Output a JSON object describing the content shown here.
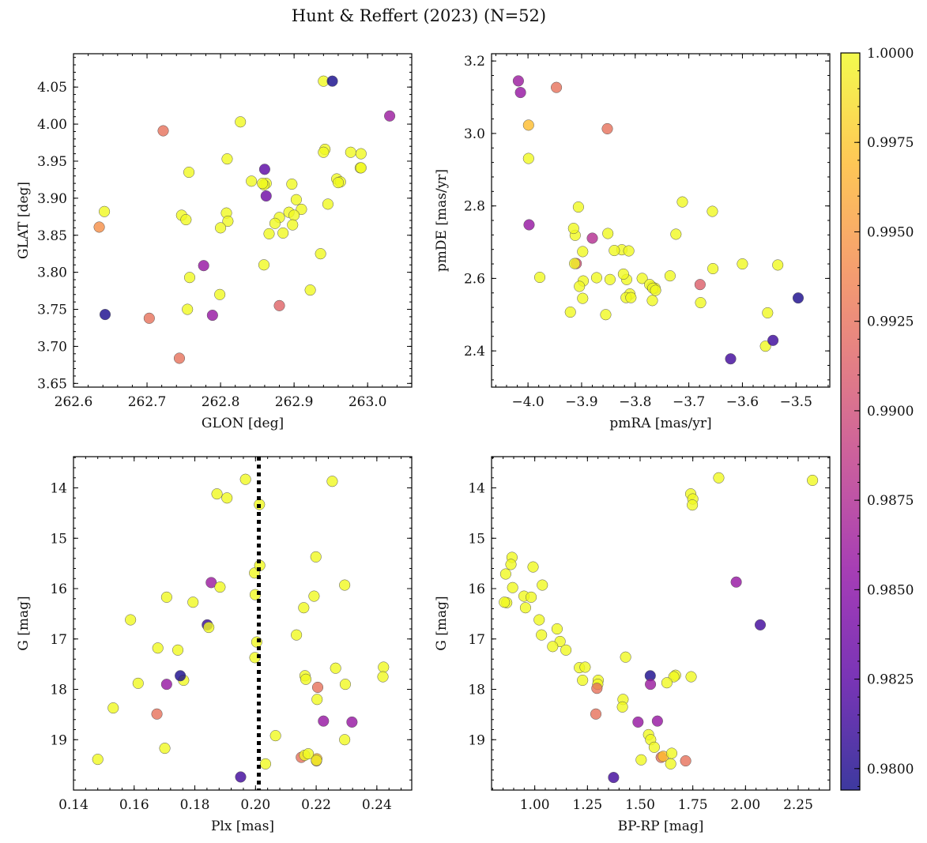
{
  "title": "Hunt & Reffert (2023) (N=52)",
  "colorbar": {
    "cmap": "plasma",
    "vmin": 0.9794,
    "vmax": 1.0,
    "ticks": [
      0.98,
      0.9825,
      0.985,
      0.9875,
      0.99,
      0.9925,
      0.995,
      0.9975,
      1.0
    ],
    "tick_labels": [
      "0.9800",
      "0.9825",
      "0.9850",
      "0.9875",
      "0.9900",
      "0.9925",
      "0.9950",
      "0.9975",
      "1.0000"
    ]
  },
  "chart_data": [
    {
      "type": "scatter",
      "id": "glon-glat",
      "title": "",
      "xlabel": "GLON [deg]",
      "ylabel": "GLAT [deg]",
      "xlim": [
        262.6,
        263.06
      ],
      "ylim": [
        3.645,
        4.095
      ],
      "invert_y": false,
      "xticks": [
        262.6,
        262.7,
        262.8,
        262.9,
        263.0
      ],
      "xtick_labels": [
        "262.6",
        "262.7",
        "262.8",
        "262.9",
        "263.0"
      ],
      "yticks": [
        3.65,
        3.7,
        3.75,
        3.8,
        3.85,
        3.9,
        3.95,
        4.0,
        4.05
      ],
      "ytick_labels": [
        "3.65",
        "3.70",
        "3.75",
        "3.80",
        "3.85",
        "3.90",
        "3.95",
        "4.00",
        "4.05"
      ],
      "x": [
        262.94,
        262.952,
        262.827,
        262.722,
        262.86,
        262.757,
        262.747,
        262.753,
        262.642,
        262.643,
        262.635,
        262.862,
        262.859,
        262.862,
        262.897,
        262.903,
        262.91,
        262.893,
        262.9,
        262.88,
        262.898,
        262.885,
        262.874,
        262.866,
        262.859,
        262.942,
        262.946,
        262.958,
        262.963,
        262.96,
        262.977,
        262.991,
        262.99,
        262.991,
        262.936,
        262.809,
        262.808,
        262.81,
        262.777,
        262.799,
        262.758,
        262.755,
        262.789,
        262.88,
        262.922,
        262.703,
        262.744,
        262.94,
        262.8,
        262.842,
        263.03,
        262.857
      ],
      "y": [
        4.058,
        4.058,
        4.003,
        3.991,
        3.939,
        3.935,
        3.877,
        3.871,
        3.882,
        3.743,
        3.861,
        3.92,
        3.918,
        3.903,
        3.919,
        3.898,
        3.885,
        3.881,
        3.877,
        3.874,
        3.864,
        3.853,
        3.866,
        3.852,
        3.81,
        3.966,
        3.892,
        3.926,
        3.922,
        3.921,
        3.962,
        3.96,
        3.941,
        3.941,
        3.825,
        3.953,
        3.88,
        3.869,
        3.809,
        3.77,
        3.793,
        3.75,
        3.742,
        3.755,
        3.776,
        3.738,
        3.684,
        3.962,
        3.86,
        3.923,
        4.011,
        3.92
      ],
      "c": [
        1.0,
        0.9796,
        1.0,
        0.9925,
        0.9825,
        1.0,
        1.0,
        1.0,
        1.0,
        0.9798,
        0.9944,
        1.0,
        1.0,
        0.9835,
        1.0,
        1.0,
        1.0,
        1.0,
        1.0,
        1.0,
        1.0,
        1.0,
        1.0,
        1.0,
        1.0,
        1.0,
        1.0,
        1.0,
        1.0,
        1.0,
        1.0,
        1.0,
        1.0,
        1.0,
        1.0,
        1.0,
        1.0,
        1.0,
        0.9858,
        1.0,
        1.0,
        1.0,
        0.9858,
        0.9915,
        1.0,
        0.9925,
        0.9925,
        1.0,
        1.0,
        1.0,
        0.9862,
        1.0
      ]
    },
    {
      "type": "scatter",
      "id": "pmra-pmde",
      "title": "",
      "xlabel": "pmRA [mas/yr]",
      "ylabel": "pmDE [mas/yr]",
      "xlim": [
        -4.068,
        -3.437
      ],
      "ylim": [
        2.3,
        3.22
      ],
      "invert_y": false,
      "xticks": [
        -4.0,
        -3.9,
        -3.8,
        -3.7,
        -3.6,
        -3.5
      ],
      "xtick_labels": [
        "−4.0",
        "−3.9",
        "−3.8",
        "−3.7",
        "−3.6",
        "−3.5"
      ],
      "yticks": [
        2.4,
        2.6,
        2.8,
        3.0,
        3.2
      ],
      "ytick_labels": [
        "2.4",
        "2.6",
        "2.8",
        "3.0",
        "3.2"
      ],
      "x": [
        -4.018,
        -4.014,
        -3.947,
        -3.999,
        -3.852,
        -3.999,
        -3.998,
        -3.712,
        -3.906,
        -3.656,
        -3.88,
        -3.912,
        -3.915,
        -3.851,
        -3.724,
        -3.978,
        -3.897,
        -3.91,
        -3.847,
        -3.825,
        -3.812,
        -3.872,
        -3.839,
        -3.904,
        -3.816,
        -3.787,
        -3.81,
        -3.817,
        -3.769,
        -3.773,
        -3.763,
        -3.735,
        -3.768,
        -3.679,
        -3.767,
        -3.762,
        -3.655,
        -3.6,
        -3.534,
        -3.553,
        -3.557,
        -3.543,
        -3.496,
        -3.622,
        -3.855,
        -3.921,
        -3.822,
        -3.898,
        -3.898,
        -3.913,
        -3.808,
        -3.678
      ],
      "y": [
        3.145,
        3.113,
        3.127,
        3.023,
        3.013,
        2.931,
        2.748,
        2.811,
        2.797,
        2.785,
        2.711,
        2.719,
        2.738,
        2.724,
        2.722,
        2.603,
        2.593,
        2.641,
        2.597,
        2.679,
        2.676,
        2.602,
        2.677,
        2.578,
        2.597,
        2.6,
        2.557,
        2.547,
        2.577,
        2.583,
        2.573,
        2.607,
        2.539,
        2.583,
        2.573,
        2.567,
        2.627,
        2.64,
        2.637,
        2.505,
        2.413,
        2.429,
        2.546,
        2.378,
        2.5,
        2.507,
        2.612,
        2.674,
        2.545,
        2.641,
        2.547,
        2.533
      ],
      "c": [
        0.9862,
        0.9858,
        0.9925,
        0.997,
        0.9925,
        1.0,
        0.9858,
        1.0,
        1.0,
        1.0,
        0.9877,
        1.0,
        1.0,
        1.0,
        1.0,
        1.0,
        1.0,
        0.9902,
        1.0,
        1.0,
        1.0,
        1.0,
        1.0,
        1.0,
        1.0,
        1.0,
        1.0,
        1.0,
        1.0,
        1.0,
        1.0,
        1.0,
        1.0,
        0.9912,
        1.0,
        1.0,
        1.0,
        1.0,
        1.0,
        1.0,
        1.0,
        0.9812,
        0.9798,
        0.9814,
        1.0,
        1.0,
        1.0,
        1.0,
        1.0,
        1.0,
        1.0,
        1.0
      ]
    },
    {
      "type": "scatter",
      "id": "plx-g",
      "title": "",
      "xlabel": "Plx [mas]",
      "ylabel": "G [mag]",
      "xlim": [
        0.14,
        0.2515
      ],
      "ylim": [
        13.38,
        20.0
      ],
      "invert_y": true,
      "vline": 0.2011,
      "xticks": [
        0.14,
        0.16,
        0.18,
        0.2,
        0.22,
        0.24
      ],
      "xtick_labels": [
        "0.14",
        "0.16",
        "0.18",
        "0.20",
        "0.22",
        "0.24"
      ],
      "yticks": [
        14,
        15,
        16,
        17,
        18,
        19
      ],
      "ytick_labels": [
        "14",
        "15",
        "16",
        "17",
        "18",
        "19"
      ],
      "x": [
        0.1967,
        0.2253,
        0.1873,
        0.1906,
        0.2013,
        0.2199,
        0.1997,
        0.2014,
        0.2294,
        0.1854,
        0.1883,
        0.1999,
        0.1707,
        0.2193,
        0.1794,
        0.2159,
        0.1588,
        0.1841,
        0.1846,
        0.2004,
        0.2135,
        0.1998,
        0.1678,
        0.1744,
        0.1763,
        0.1752,
        0.1707,
        0.1613,
        0.2163,
        0.2166,
        0.2264,
        0.2422,
        0.242,
        0.2296,
        0.2205,
        0.2203,
        0.1531,
        0.2224,
        0.2318,
        0.1675,
        0.2066,
        0.2294,
        0.1701,
        0.148,
        0.2151,
        0.2202,
        0.2201,
        0.2033,
        0.1951,
        0.2162,
        0.2174,
        0.2201
      ],
      "y": [
        13.83,
        13.87,
        14.12,
        14.2,
        14.33,
        15.37,
        15.69,
        15.54,
        15.93,
        15.88,
        15.97,
        16.12,
        16.17,
        16.15,
        16.27,
        16.38,
        16.62,
        16.72,
        16.77,
        17.06,
        16.92,
        17.37,
        17.18,
        17.22,
        17.82,
        17.73,
        17.9,
        17.88,
        17.73,
        17.8,
        17.58,
        17.56,
        17.75,
        17.9,
        17.96,
        18.2,
        18.37,
        18.63,
        18.65,
        18.49,
        18.92,
        19.0,
        19.17,
        19.39,
        19.35,
        19.38,
        19.42,
        19.48,
        19.74,
        19.31,
        19.28,
        19.41
      ],
      "c": [
        1.0,
        1.0,
        1.0,
        1.0,
        1.0,
        1.0,
        1.0,
        1.0,
        1.0,
        0.9862,
        1.0,
        1.0,
        1.0,
        1.0,
        1.0,
        1.0,
        1.0,
        0.981,
        1.0,
        1.0,
        1.0,
        1.0,
        1.0,
        1.0,
        1.0,
        0.9798,
        0.9858,
        1.0,
        1.0,
        1.0,
        1.0,
        1.0,
        1.0,
        1.0,
        0.9925,
        1.0,
        1.0,
        0.9858,
        0.9858,
        0.9925,
        1.0,
        1.0,
        1.0,
        1.0,
        0.9925,
        0.997,
        0.9925,
        1.0,
        0.9814,
        1.0,
        1.0,
        1.0
      ]
    },
    {
      "type": "scatter",
      "id": "bprp-g",
      "title": "",
      "xlabel": "BP-RP [mag]",
      "ylabel": "G [mag]",
      "xlim": [
        0.795,
        2.4
      ],
      "ylim": [
        13.38,
        20.0
      ],
      "invert_y": true,
      "xticks": [
        1.0,
        1.25,
        1.5,
        1.75,
        2.0,
        2.25
      ],
      "xtick_labels": [
        "1.00",
        "1.25",
        "1.50",
        "1.75",
        "2.00",
        "2.25"
      ],
      "yticks": [
        14,
        15,
        16,
        17,
        18,
        19
      ],
      "ytick_labels": [
        "14",
        "15",
        "16",
        "17",
        "18",
        "19"
      ],
      "x": [
        1.873,
        2.318,
        1.74,
        1.75,
        1.748,
        0.892,
        0.887,
        0.862,
        0.992,
        1.036,
        0.867,
        0.895,
        0.949,
        0.983,
        0.956,
        0.856,
        1.021,
        1.032,
        1.106,
        1.12,
        1.085,
        1.148,
        1.212,
        1.239,
        1.227,
        1.301,
        1.299,
        1.295,
        1.431,
        1.419,
        1.416,
        1.548,
        1.549,
        1.668,
        1.66,
        1.627,
        1.742,
        1.956,
        2.07,
        1.49,
        1.582,
        1.54,
        1.55,
        1.567,
        1.505,
        1.6,
        1.61,
        1.65,
        1.645,
        1.716,
        1.374,
        1.29
      ],
      "y": [
        13.8,
        13.85,
        14.12,
        14.22,
        14.34,
        15.38,
        15.52,
        15.71,
        15.57,
        15.93,
        16.28,
        15.98,
        16.15,
        16.17,
        16.38,
        16.27,
        16.62,
        16.92,
        16.8,
        17.05,
        17.15,
        17.22,
        17.57,
        17.56,
        17.82,
        17.82,
        17.9,
        17.98,
        17.36,
        18.2,
        18.35,
        17.73,
        17.9,
        17.72,
        17.75,
        17.87,
        17.75,
        15.87,
        16.72,
        18.65,
        18.63,
        18.9,
        19.0,
        19.15,
        19.4,
        19.35,
        19.33,
        19.27,
        19.48,
        19.42,
        19.75,
        18.49
      ],
      "c": [
        1.0,
        1.0,
        1.0,
        1.0,
        1.0,
        1.0,
        1.0,
        1.0,
        1.0,
        1.0,
        1.0,
        1.0,
        1.0,
        1.0,
        1.0,
        1.0,
        1.0,
        1.0,
        1.0,
        1.0,
        1.0,
        1.0,
        1.0,
        1.0,
        1.0,
        1.0,
        1.0,
        0.9925,
        1.0,
        1.0,
        1.0,
        0.9798,
        0.9862,
        1.0,
        1.0,
        1.0,
        1.0,
        0.9858,
        0.9814,
        0.9858,
        0.9858,
        1.0,
        1.0,
        1.0,
        1.0,
        0.9925,
        0.997,
        1.0,
        1.0,
        0.9925,
        0.9814,
        0.9925
      ]
    }
  ]
}
